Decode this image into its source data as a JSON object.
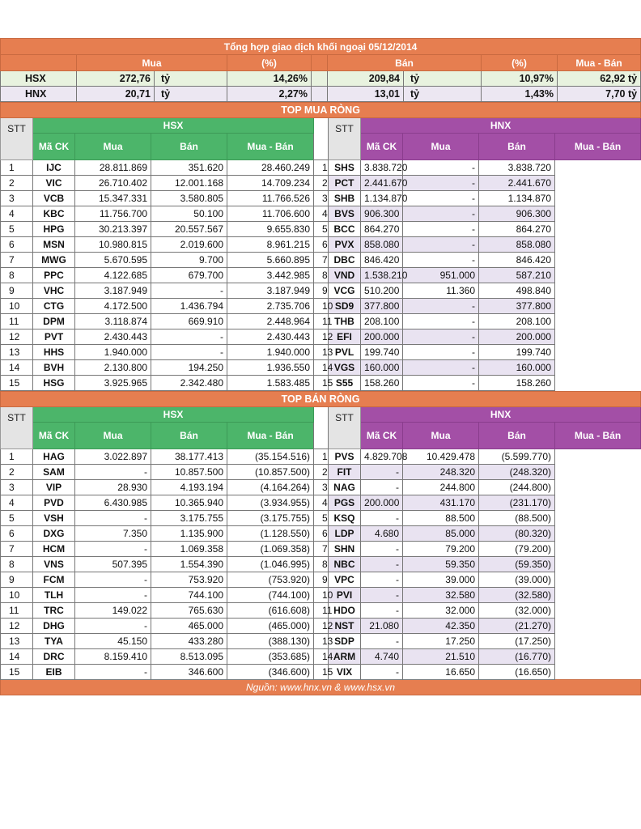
{
  "title": "Tổng hợp giao dịch khối ngoại 05/12/2014",
  "summary": {
    "headers": {
      "mua": "Mua",
      "pct1": "(%)",
      "ban": "Bán",
      "pct2": "(%)",
      "net": "Mua - Bán"
    },
    "unit": "tỷ",
    "rows": [
      {
        "label": "HSX",
        "mua": "272,76",
        "mua_pct": "14,26%",
        "ban": "209,84",
        "ban_pct": "10,97%",
        "net": "62,92 tỷ"
      },
      {
        "label": "HNX",
        "mua": "20,71",
        "mua_pct": "2,27%",
        "ban": "13,01",
        "ban_pct": "1,43%",
        "net": "7,70 tỷ"
      }
    ]
  },
  "col_headers": {
    "stt": "STT",
    "ma_ck": "Mã CK",
    "mua": "Mua",
    "ban": "Bán",
    "net": "Mua - Bán",
    "hsx": "HSX",
    "hnx": "HNX"
  },
  "top_buy": {
    "title": "TOP MUA RÒNG",
    "rows": [
      {
        "stt": "1",
        "hsx": [
          "IJC",
          "28.811.869",
          "351.620",
          "28.460.249"
        ],
        "hnx": [
          "SHS",
          "3.838.720",
          "-",
          "3.838.720"
        ]
      },
      {
        "stt": "2",
        "hsx": [
          "VIC",
          "26.710.402",
          "12.001.168",
          "14.709.234"
        ],
        "hnx": [
          "PCT",
          "2.441.670",
          "-",
          "2.441.670"
        ]
      },
      {
        "stt": "3",
        "hsx": [
          "VCB",
          "15.347.331",
          "3.580.805",
          "11.766.526"
        ],
        "hnx": [
          "SHB",
          "1.134.870",
          "-",
          "1.134.870"
        ]
      },
      {
        "stt": "4",
        "hsx": [
          "KBC",
          "11.756.700",
          "50.100",
          "11.706.600"
        ],
        "hnx": [
          "BVS",
          "906.300",
          "-",
          "906.300"
        ]
      },
      {
        "stt": "5",
        "hsx": [
          "HPG",
          "30.213.397",
          "20.557.567",
          "9.655.830"
        ],
        "hnx": [
          "BCC",
          "864.270",
          "-",
          "864.270"
        ]
      },
      {
        "stt": "6",
        "hsx": [
          "MSN",
          "10.980.815",
          "2.019.600",
          "8.961.215"
        ],
        "hnx": [
          "PVX",
          "858.080",
          "-",
          "858.080"
        ]
      },
      {
        "stt": "7",
        "hsx": [
          "MWG",
          "5.670.595",
          "9.700",
          "5.660.895"
        ],
        "hnx": [
          "DBC",
          "846.420",
          "-",
          "846.420"
        ]
      },
      {
        "stt": "8",
        "hsx": [
          "PPC",
          "4.122.685",
          "679.700",
          "3.442.985"
        ],
        "hnx": [
          "VND",
          "1.538.210",
          "951.000",
          "587.210"
        ]
      },
      {
        "stt": "9",
        "hsx": [
          "VHC",
          "3.187.949",
          "-",
          "3.187.949"
        ],
        "hnx": [
          "VCG",
          "510.200",
          "11.360",
          "498.840"
        ]
      },
      {
        "stt": "10",
        "hsx": [
          "CTG",
          "4.172.500",
          "1.436.794",
          "2.735.706"
        ],
        "hnx": [
          "SD9",
          "377.800",
          "-",
          "377.800"
        ]
      },
      {
        "stt": "11",
        "hsx": [
          "DPM",
          "3.118.874",
          "669.910",
          "2.448.964"
        ],
        "hnx": [
          "THB",
          "208.100",
          "-",
          "208.100"
        ]
      },
      {
        "stt": "12",
        "hsx": [
          "PVT",
          "2.430.443",
          "-",
          "2.430.443"
        ],
        "hnx": [
          "EFI",
          "200.000",
          "-",
          "200.000"
        ]
      },
      {
        "stt": "13",
        "hsx": [
          "HHS",
          "1.940.000",
          "-",
          "1.940.000"
        ],
        "hnx": [
          "PVL",
          "199.740",
          "-",
          "199.740"
        ]
      },
      {
        "stt": "14",
        "hsx": [
          "BVH",
          "2.130.800",
          "194.250",
          "1.936.550"
        ],
        "hnx": [
          "VGS",
          "160.000",
          "-",
          "160.000"
        ]
      },
      {
        "stt": "15",
        "hsx": [
          "HSG",
          "3.925.965",
          "2.342.480",
          "1.583.485"
        ],
        "hnx": [
          "S55",
          "158.260",
          "-",
          "158.260"
        ]
      }
    ]
  },
  "top_sell": {
    "title": "TOP BÁN RÒNG",
    "rows": [
      {
        "stt": "1",
        "hsx": [
          "HAG",
          "3.022.897",
          "38.177.413",
          "(35.154.516)"
        ],
        "hnx": [
          "PVS",
          "4.829.708",
          "10.429.478",
          "(5.599.770)"
        ]
      },
      {
        "stt": "2",
        "hsx": [
          "SAM",
          "-",
          "10.857.500",
          "(10.857.500)"
        ],
        "hnx": [
          "FIT",
          "-",
          "248.320",
          "(248.320)"
        ]
      },
      {
        "stt": "3",
        "hsx": [
          "VIP",
          "28.930",
          "4.193.194",
          "(4.164.264)"
        ],
        "hnx": [
          "NAG",
          "-",
          "244.800",
          "(244.800)"
        ]
      },
      {
        "stt": "4",
        "hsx": [
          "PVD",
          "6.430.985",
          "10.365.940",
          "(3.934.955)"
        ],
        "hnx": [
          "PGS",
          "200.000",
          "431.170",
          "(231.170)"
        ]
      },
      {
        "stt": "5",
        "hsx": [
          "VSH",
          "-",
          "3.175.755",
          "(3.175.755)"
        ],
        "hnx": [
          "KSQ",
          "-",
          "88.500",
          "(88.500)"
        ]
      },
      {
        "stt": "6",
        "hsx": [
          "DXG",
          "7.350",
          "1.135.900",
          "(1.128.550)"
        ],
        "hnx": [
          "LDP",
          "4.680",
          "85.000",
          "(80.320)"
        ]
      },
      {
        "stt": "7",
        "hsx": [
          "HCM",
          "-",
          "1.069.358",
          "(1.069.358)"
        ],
        "hnx": [
          "SHN",
          "-",
          "79.200",
          "(79.200)"
        ]
      },
      {
        "stt": "8",
        "hsx": [
          "VNS",
          "507.395",
          "1.554.390",
          "(1.046.995)"
        ],
        "hnx": [
          "NBC",
          "-",
          "59.350",
          "(59.350)"
        ]
      },
      {
        "stt": "9",
        "hsx": [
          "FCM",
          "-",
          "753.920",
          "(753.920)"
        ],
        "hnx": [
          "VPC",
          "-",
          "39.000",
          "(39.000)"
        ]
      },
      {
        "stt": "10",
        "hsx": [
          "TLH",
          "-",
          "744.100",
          "(744.100)"
        ],
        "hnx": [
          "PVI",
          "-",
          "32.580",
          "(32.580)"
        ]
      },
      {
        "stt": "11",
        "hsx": [
          "TRC",
          "149.022",
          "765.630",
          "(616.608)"
        ],
        "hnx": [
          "HDO",
          "-",
          "32.000",
          "(32.000)"
        ]
      },
      {
        "stt": "12",
        "hsx": [
          "DHG",
          "-",
          "465.000",
          "(465.000)"
        ],
        "hnx": [
          "NST",
          "21.080",
          "42.350",
          "(21.270)"
        ]
      },
      {
        "stt": "13",
        "hsx": [
          "TYA",
          "45.150",
          "433.280",
          "(388.130)"
        ],
        "hnx": [
          "SDP",
          "-",
          "17.250",
          "(17.250)"
        ]
      },
      {
        "stt": "14",
        "hsx": [
          "DRC",
          "8.159.410",
          "8.513.095",
          "(353.685)"
        ],
        "hnx": [
          "ARM",
          "4.740",
          "21.510",
          "(16.770)"
        ]
      },
      {
        "stt": "15",
        "hsx": [
          "EIB",
          "-",
          "346.600",
          "(346.600)"
        ],
        "hnx": [
          "VIX",
          "-",
          "16.650",
          "(16.650)"
        ]
      }
    ]
  },
  "footer": "Nguồn: www.hnx.vn   &   www.hsx.vn"
}
